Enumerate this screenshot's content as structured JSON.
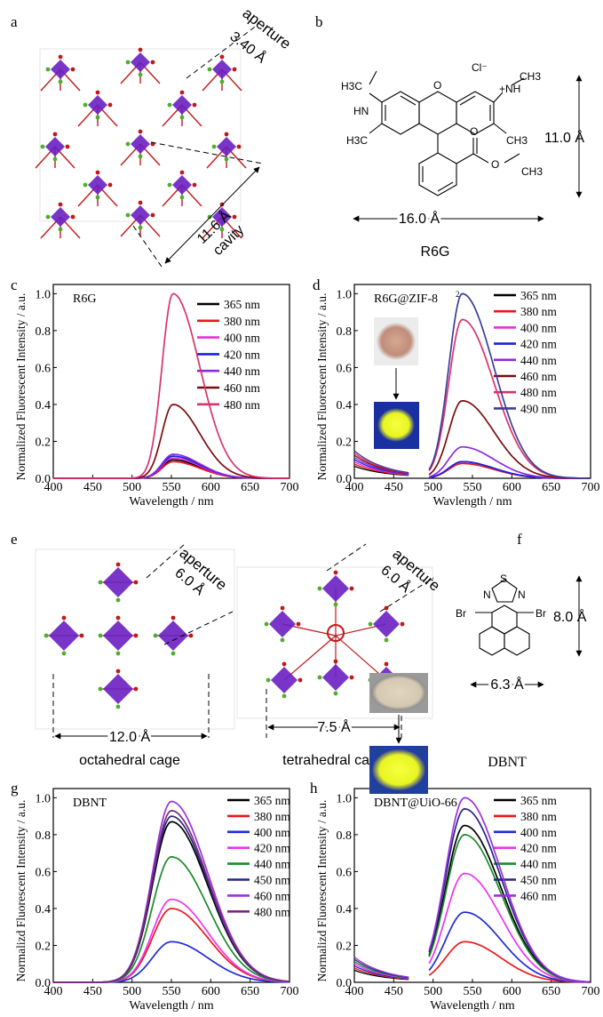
{
  "panel_letters": [
    "a",
    "b",
    "c",
    "d",
    "e",
    "f",
    "g",
    "h"
  ],
  "panel_a": {
    "aperture_label": "aperture",
    "aperture_value": "3.40 Å",
    "cavity_value": "11.6 Å",
    "cavity_label": "cavity"
  },
  "panel_b": {
    "molecule_name": "R6G",
    "width_label": "16.0 Å",
    "height_label": "11.0 Å",
    "atoms": [
      "H3C",
      "HN",
      "O",
      "Cl⁻",
      "+NH",
      "CH3",
      "H3C",
      "CH3",
      "O",
      "O",
      "CH3"
    ]
  },
  "panel_e": {
    "aperture_label_1": "aperture",
    "aperture_value_1": "6.0 Å",
    "width_label_1": "12.0 Å",
    "cage_name_1": "octahedral cage",
    "aperture_label_2": "aperture",
    "aperture_value_2": "6.0 Å",
    "width_label_2": "7.5 Å",
    "cage_name_2": "tetrahedral cage"
  },
  "panel_f": {
    "molecule_name": "DBNT",
    "width_label": "6.3 Å",
    "height_label": "8.0 Å",
    "atoms": [
      "S",
      "N",
      "N",
      "Br",
      "Br"
    ]
  },
  "colors": {
    "365 nm": "#000000",
    "380 nm": "#e8191b",
    "400 nm": "#e32fd8",
    "420 nm": "#1b22e0",
    "440 nm": "#8a2be2",
    "460 nm": "#7b0d0d",
    "480 nm": "#d8336b",
    "490 nm": "#3c3c9c",
    "g_400 nm": "#1d2ad6",
    "g_420 nm": "#ee33ee",
    "g_440 nm": "#1a8a2a",
    "g_450 nm": "#262680",
    "g_460 nm": "#9b30e0",
    "g_480 nm": "#7a2a7a",
    "molecule_violet": "#6a1fc2",
    "bond_red": "#c21818",
    "atom_green": "#4caf2a",
    "atom_blue": "#2a3ad0"
  },
  "chart_data": [
    {
      "panel": "c",
      "type": "line",
      "title": "R6G",
      "xlabel": "Wavelength / nm",
      "ylabel": "Normalized Fluorescent Intensity / a.u.",
      "xlim": [
        400,
        700
      ],
      "ylim": [
        0,
        1.05
      ],
      "xticks": [
        400,
        450,
        500,
        550,
        600,
        650,
        700
      ],
      "yticks": [
        0.0,
        0.2,
        0.4,
        0.6,
        0.8,
        1.0
      ],
      "legend": "top-right",
      "series": [
        {
          "name": "365 nm",
          "peak": 552,
          "amp": 0.1
        },
        {
          "name": "380 nm",
          "peak": 552,
          "amp": 0.09
        },
        {
          "name": "400 nm",
          "peak": 552,
          "amp": 0.11
        },
        {
          "name": "420 nm",
          "peak": 552,
          "amp": 0.12
        },
        {
          "name": "440 nm",
          "peak": 552,
          "amp": 0.13
        },
        {
          "name": "460 nm",
          "peak": 552,
          "amp": 0.4
        },
        {
          "name": "480 nm",
          "peak": 552,
          "amp": 1.0
        }
      ]
    },
    {
      "panel": "d",
      "type": "line",
      "title": "R6G@ZIF-8",
      "title_sup": "2",
      "xlabel": "Wavlength / nm",
      "ylabel": "Normalized Fluorescent Intensity / a.u.",
      "xlim": [
        400,
        700
      ],
      "ylim": [
        0,
        1.05
      ],
      "xticks": [
        400,
        450,
        500,
        550,
        600,
        650,
        700
      ],
      "yticks": [
        0.0,
        0.2,
        0.4,
        0.6,
        0.8,
        1.0
      ],
      "legend": "top-right",
      "series": [
        {
          "name": "365 nm",
          "peak": 537,
          "amp": 0.09
        },
        {
          "name": "380 nm",
          "peak": 537,
          "amp": 0.08
        },
        {
          "name": "400 nm",
          "peak": 537,
          "amp": 0.09
        },
        {
          "name": "420 nm",
          "peak": 537,
          "amp": 0.09
        },
        {
          "name": "440 nm",
          "peak": 537,
          "amp": 0.17
        },
        {
          "name": "460 nm",
          "peak": 537,
          "amp": 0.42
        },
        {
          "name": "480 nm",
          "peak": 537,
          "amp": 0.86
        },
        {
          "name": "490 nm",
          "peak": 537,
          "amp": 1.0
        }
      ]
    },
    {
      "panel": "g",
      "type": "line",
      "title": "DBNT",
      "xlabel": "Wavelength / nm",
      "ylabel": "Normalizd Fluorescent Intensity / a.u.",
      "xlim": [
        400,
        700
      ],
      "ylim": [
        0,
        1.05
      ],
      "xticks": [
        400,
        450,
        500,
        550,
        600,
        650,
        700
      ],
      "yticks": [
        0.0,
        0.2,
        0.4,
        0.6,
        0.8,
        1.0
      ],
      "legend": "top-right",
      "series": [
        {
          "name": "365 nm",
          "peak": 550,
          "amp": 0.87
        },
        {
          "name": "380 nm",
          "peak": 550,
          "amp": 0.4
        },
        {
          "name": "400 nm",
          "peak": 550,
          "amp": 0.22
        },
        {
          "name": "420 nm",
          "peak": 550,
          "amp": 0.45
        },
        {
          "name": "440 nm",
          "peak": 550,
          "amp": 0.68
        },
        {
          "name": "450 nm",
          "peak": 550,
          "amp": 0.9
        },
        {
          "name": "460 nm",
          "peak": 550,
          "amp": 0.98
        },
        {
          "name": "480 nm",
          "peak": 550,
          "amp": 0.93
        }
      ]
    },
    {
      "panel": "h",
      "type": "line",
      "title": "DBNT@UiO-66",
      "xlabel": "Wavelength / nm",
      "ylabel": "Normalizd Fluorescent Intensity / a.u.",
      "xlim": [
        400,
        700
      ],
      "ylim": [
        0,
        1.05
      ],
      "xticks": [
        400,
        450,
        500,
        550,
        600,
        650,
        700
      ],
      "yticks": [
        0.0,
        0.2,
        0.4,
        0.6,
        0.8,
        1.0
      ],
      "legend": "top-right",
      "series": [
        {
          "name": "365 nm",
          "peak": 540,
          "amp": 0.85
        },
        {
          "name": "380 nm",
          "peak": 540,
          "amp": 0.22
        },
        {
          "name": "400 nm",
          "peak": 540,
          "amp": 0.38
        },
        {
          "name": "420 nm",
          "peak": 540,
          "amp": 0.59
        },
        {
          "name": "440 nm",
          "peak": 540,
          "amp": 0.8
        },
        {
          "name": "450 nm",
          "peak": 540,
          "amp": 0.94
        },
        {
          "name": "460 nm",
          "peak": 540,
          "amp": 1.0
        }
      ]
    }
  ]
}
